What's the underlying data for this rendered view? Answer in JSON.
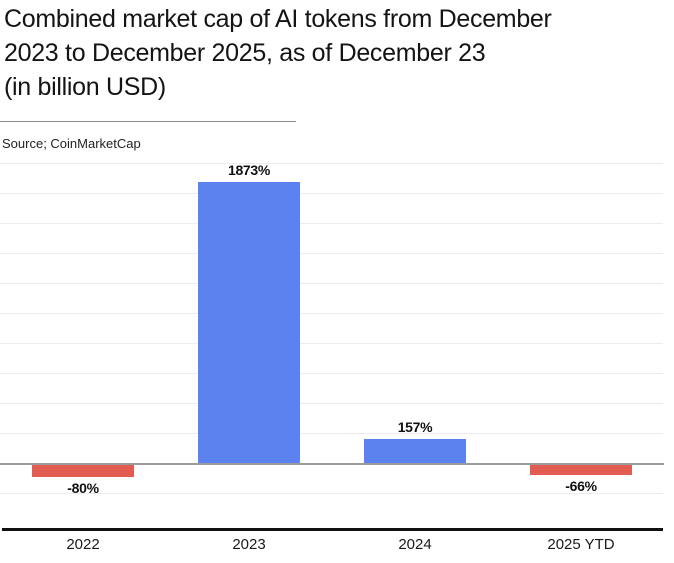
{
  "page": {
    "title_lines": [
      "Combined market cap of AI tokens from December",
      "2023 to December 2025, as of December 23",
      "(in billion USD)"
    ],
    "source": "Source; CoinMarketCap"
  },
  "chart_data": {
    "type": "bar",
    "title": "Combined market cap of AI tokens from December 2023 to December 2025, as of December 23 (in billion USD)",
    "categories": [
      "2022",
      "2023",
      "2024",
      "2025 YTD"
    ],
    "values": [
      -80,
      1873,
      157,
      -66
    ],
    "value_labels": [
      "-80%",
      "1873%",
      "157%",
      "-66%"
    ],
    "xlabel": "",
    "ylabel": "",
    "ylim": [
      -200,
      2000
    ],
    "ytick_step": 200,
    "yticks_labeled": false,
    "grid": true,
    "legend": false,
    "colors": {
      "positive": "#5b82ee",
      "negative": "#e25c52",
      "gridline": "#ececec",
      "zero_line": "#9b9b9b",
      "axis_line": "#111111"
    }
  }
}
